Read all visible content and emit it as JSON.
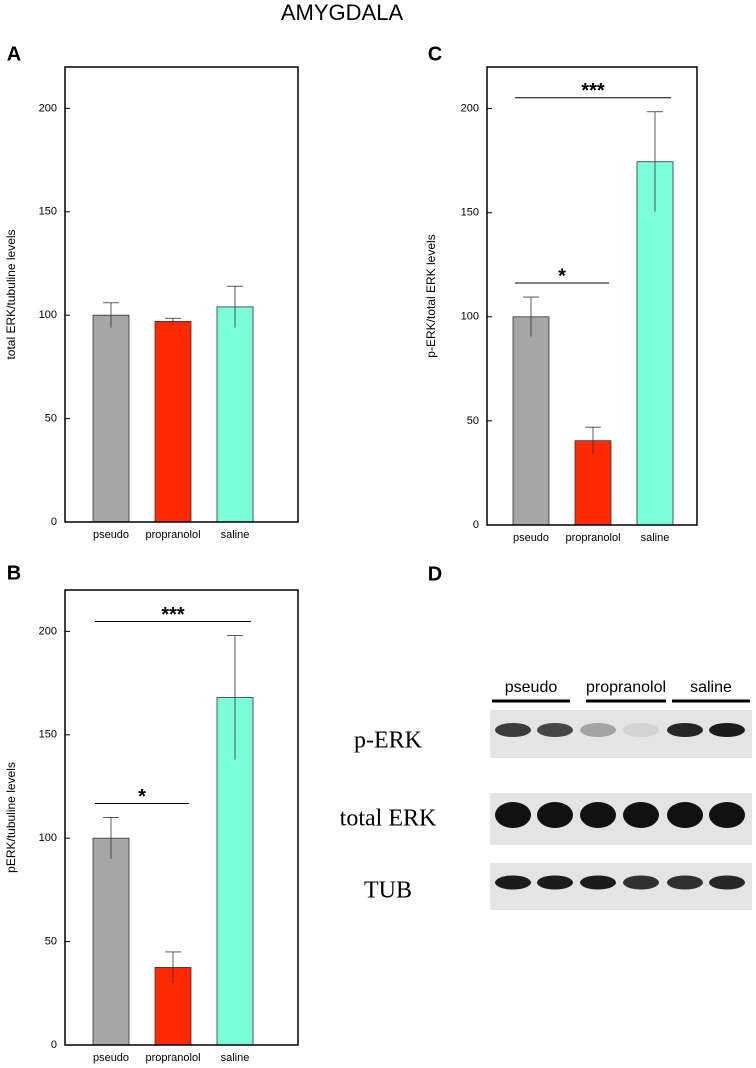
{
  "title": "AMYGDALA",
  "chart_data": [
    {
      "type": "bar",
      "panel": "A",
      "ylabel": "total ERK/tubuline levels",
      "categories": [
        "pseudo",
        "propranolol",
        "saline"
      ],
      "values": [
        100,
        97,
        104
      ],
      "errors": [
        6,
        1.5,
        10
      ],
      "colors": [
        "#a6a6a6",
        "#ff2a00",
        "#7affd8"
      ],
      "ylim": [
        0,
        220
      ],
      "yticks": [
        0,
        50,
        100,
        150,
        200
      ],
      "annotations": []
    },
    {
      "type": "bar",
      "panel": "B",
      "ylabel": "pERK/tubuline levels",
      "categories": [
        "pseudo",
        "propranolol",
        "saline"
      ],
      "values": [
        100,
        37.5,
        168
      ],
      "errors": [
        10,
        7.5,
        30
      ],
      "colors": [
        "#a6a6a6",
        "#ff2a00",
        "#7affd8"
      ],
      "ylim": [
        0,
        220
      ],
      "yticks": [
        0,
        50,
        100,
        150,
        200
      ],
      "annotations": [
        "*",
        "***"
      ]
    },
    {
      "type": "bar",
      "panel": "C",
      "ylabel": "p-ERK/total ERK levels",
      "categories": [
        "pseudo",
        "propranolol",
        "saline"
      ],
      "values": [
        100,
        40.5,
        174.5
      ],
      "errors": [
        9.5,
        6.5,
        24
      ],
      "colors": [
        "#a6a6a6",
        "#ff2a00",
        "#7affd8"
      ],
      "ylim": [
        0,
        220
      ],
      "yticks": [
        0,
        50,
        100,
        150,
        200
      ],
      "annotations": [
        "*",
        "***"
      ]
    }
  ],
  "blot": {
    "panel": "D",
    "groups": [
      "pseudo",
      "propranolol",
      "saline"
    ],
    "rows": [
      "p-ERK",
      "total ERK",
      "TUB"
    ]
  }
}
